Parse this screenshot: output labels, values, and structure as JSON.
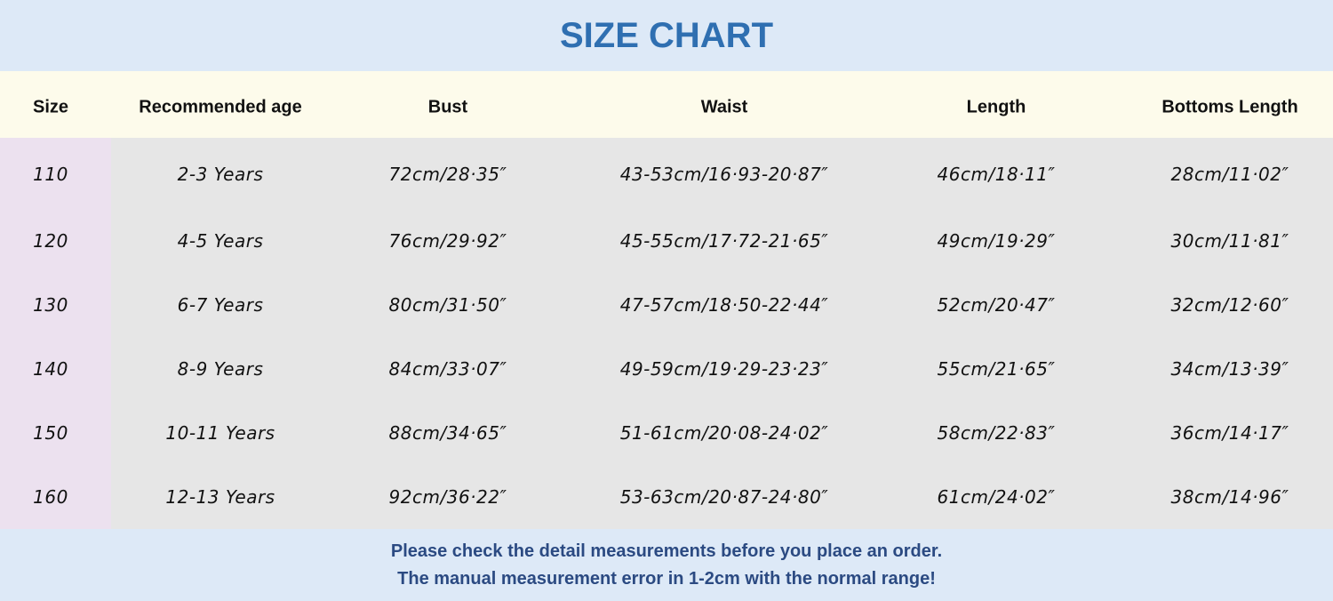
{
  "title": "SIZE CHART",
  "headers": [
    "Size",
    "Recommended age",
    "Bust",
    "Waist",
    "Length",
    "Bottoms Length"
  ],
  "rows": [
    [
      "110",
      "2-3 Years",
      "72cm/28·35″",
      "43-53cm/16·93-20·87″",
      "46cm/18·11″",
      "28cm/11·02″"
    ],
    [
      "120",
      "4-5 Years",
      "76cm/29·92″",
      "45-55cm/17·72-21·65″",
      "49cm/19·29″",
      "30cm/11·81″"
    ],
    [
      "130",
      "6-7 Years",
      "80cm/31·50″",
      "47-57cm/18·50-22·44″",
      "52cm/20·47″",
      "32cm/12·60″"
    ],
    [
      "140",
      "8-9 Years",
      "84cm/33·07″",
      "49-59cm/19·29-23·23″",
      "55cm/21·65″",
      "34cm/13·39″"
    ],
    [
      "150",
      "10-11 Years",
      "88cm/34·65″",
      "51-61cm/20·08-24·02″",
      "58cm/22·83″",
      "36cm/14·17″"
    ],
    [
      "160",
      "12-13 Years",
      "92cm/36·22″",
      "53-63cm/20·87-24·80″",
      "61cm/24·02″",
      "38cm/14·96″"
    ]
  ],
  "notes": [
    "Please check the detail measurements before you place an order.",
    "The manual measurement error in 1-2cm with the normal range!"
  ],
  "colors": {
    "title": "#2f6fb1",
    "title_band": "#dde9f7",
    "header_band": "#fdfbeb",
    "body": "#e6e6e6",
    "size_column": "#ece1ef",
    "note": "#2b4a82"
  }
}
